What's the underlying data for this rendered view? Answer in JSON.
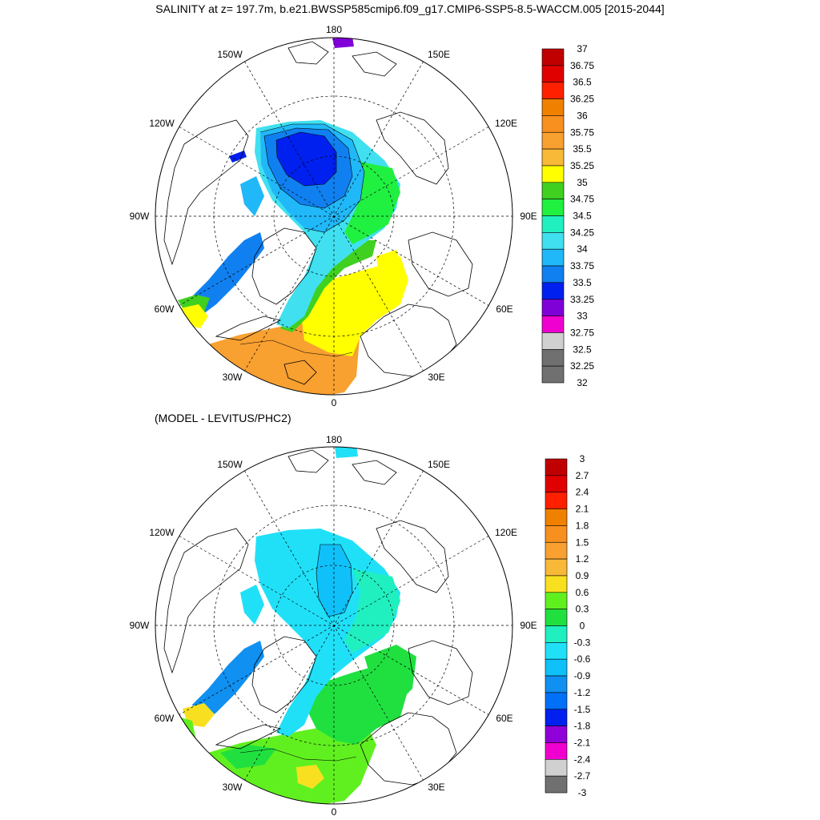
{
  "top_panel": {
    "title": "SALINITY at z= 197.7m, b.e21.BWSSP585cmip6.f09_g17.CMIP6-SSP5-8.5-WACCM.005 [2015-2044]",
    "longitude_labels": [
      "180",
      "150E",
      "120E",
      "90E",
      "60E",
      "30E",
      "0",
      "30W",
      "60W",
      "90W",
      "120W",
      "150W"
    ],
    "colorbar": {
      "labels": [
        "37",
        "36.75",
        "36.5",
        "36.25",
        "36",
        "35.75",
        "35.5",
        "35.25",
        "35",
        "34.75",
        "34.5",
        "34.25",
        "34",
        "33.75",
        "33.5",
        "33.25",
        "33",
        "32.75",
        "32.5",
        "32.25",
        "32"
      ],
      "colors": [
        "#c00000",
        "#e00000",
        "#ff2000",
        "#f08000",
        "#f89020",
        "#f8a030",
        "#f8b838",
        "#ffff00",
        "#40d020",
        "#20f040",
        "#20f0c0",
        "#40e0f0",
        "#20b8f8",
        "#1080f0",
        "#0020f0",
        "#8000d8",
        "#f000d0",
        "#d0d0d0",
        "#707070",
        "#707070"
      ]
    }
  },
  "bottom_panel": {
    "subtitle": "(MODEL - LEVITUS/PHC2)",
    "longitude_labels": [
      "180",
      "150E",
      "120E",
      "90E",
      "60E",
      "30E",
      "0",
      "30W",
      "60W",
      "90W",
      "120W",
      "150W"
    ],
    "colorbar": {
      "labels": [
        "3",
        "2.7",
        "2.4",
        "2.1",
        "1.8",
        "1.5",
        "1.2",
        "0.9",
        "0.6",
        "0.3",
        "0",
        "-0.3",
        "-0.6",
        "-0.9",
        "-1.2",
        "-1.5",
        "-1.8",
        "-2.1",
        "-2.4",
        "-2.7",
        "-3"
      ],
      "colors": [
        "#c00000",
        "#e00000",
        "#ff2000",
        "#f08000",
        "#f89020",
        "#f8a030",
        "#f8b838",
        "#f8e020",
        "#60f020",
        "#20e040",
        "#20f0c0",
        "#20e0f8",
        "#10c0f8",
        "#1090f0",
        "#0070f8",
        "#0020f0",
        "#9000d8",
        "#f000d0",
        "#d0d0d0",
        "#707070"
      ]
    }
  },
  "colors": {
    "land_outline": "#000000",
    "grid": "#000000"
  }
}
